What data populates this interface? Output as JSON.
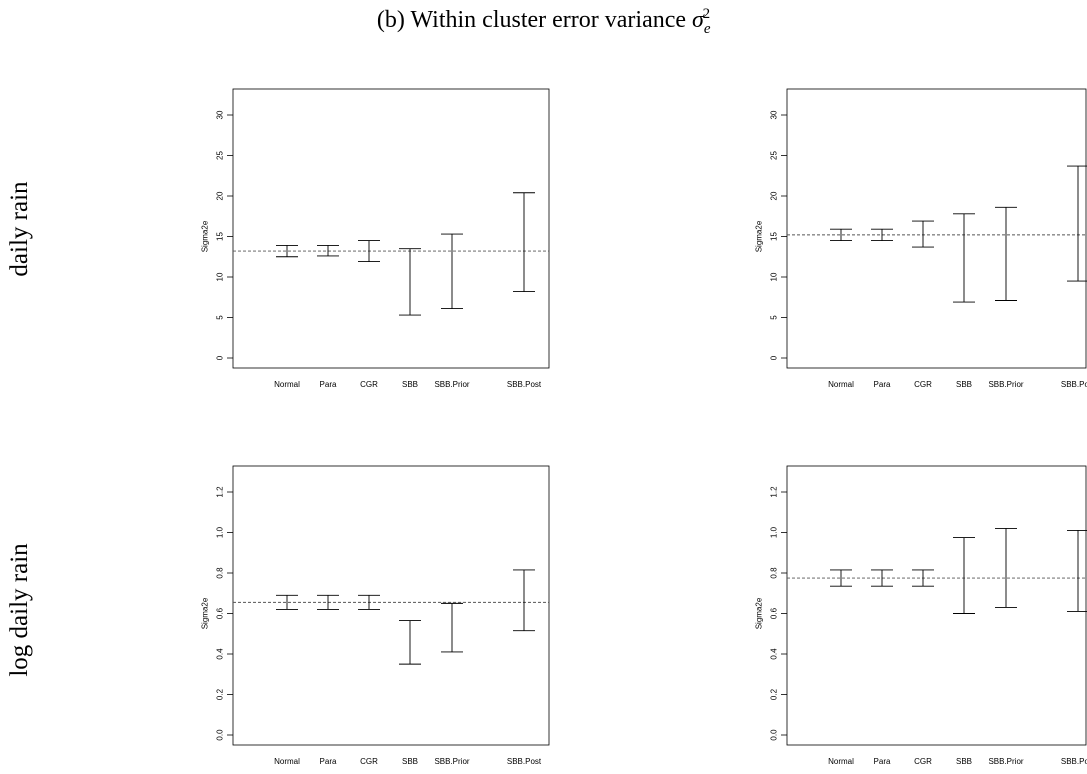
{
  "figure": {
    "title_prefix": "(b) Within cluster error variance ",
    "title_symbol": "σ",
    "title_sub": "e",
    "title_sup": "2",
    "row_labels": [
      "daily rain",
      "log daily rain"
    ]
  },
  "chart_data": [
    {
      "type": "errorbar",
      "ylabel": "Sigma2e",
      "categories": [
        "Normal",
        "Para",
        "CGR",
        "SBB",
        "SBB.Prior",
        "SBB.Post"
      ],
      "x": [
        1,
        2,
        3,
        4,
        5,
        6.5
      ],
      "lower": [
        12.5,
        12.6,
        11.9,
        5.3,
        6.1,
        8.2
      ],
      "upper": [
        13.9,
        13.9,
        14.5,
        13.5,
        15.3,
        20.4
      ],
      "reference_line": 13.2,
      "ylim": [
        0,
        30
      ],
      "yticks": [
        0,
        5,
        10,
        15,
        20,
        25,
        30
      ],
      "grid": false
    },
    {
      "type": "errorbar",
      "ylabel": "Sigma2e",
      "categories": [
        "Normal",
        "Para",
        "CGR",
        "SBB",
        "SBB.Prior",
        "SBB.Post"
      ],
      "x": [
        1,
        2,
        3,
        4,
        5,
        6.5
      ],
      "lower": [
        14.5,
        14.5,
        13.7,
        6.9,
        7.1,
        9.5
      ],
      "upper": [
        15.9,
        15.9,
        16.9,
        17.8,
        18.6,
        23.7
      ],
      "reference_line": 15.2,
      "ylim": [
        0,
        30
      ],
      "yticks": [
        0,
        5,
        10,
        15,
        20,
        25,
        30
      ],
      "grid": false
    },
    {
      "type": "errorbar",
      "ylabel": "Sigma2e",
      "categories": [
        "Normal",
        "Para",
        "CGR",
        "SBB",
        "SBB.Prior",
        "SBB.Post"
      ],
      "x": [
        1,
        2,
        3,
        4,
        5,
        6.5
      ],
      "lower": [
        0.62,
        0.62,
        0.62,
        0.35,
        0.41,
        0.515
      ],
      "upper": [
        0.69,
        0.69,
        0.69,
        0.565,
        0.65,
        0.815
      ],
      "reference_line": 0.655,
      "ylim": [
        0,
        1.2
      ],
      "yticks": [
        0.0,
        0.2,
        0.4,
        0.6,
        0.8,
        1.0,
        1.2
      ],
      "grid": false
    },
    {
      "type": "errorbar",
      "ylabel": "Sigma2e",
      "categories": [
        "Normal",
        "Para",
        "CGR",
        "SBB",
        "SBB.Prior",
        "SBB.Post"
      ],
      "x": [
        1,
        2,
        3,
        4,
        5,
        6.5
      ],
      "lower": [
        0.735,
        0.735,
        0.735,
        0.6,
        0.63,
        0.61
      ],
      "upper": [
        0.815,
        0.815,
        0.815,
        0.975,
        1.02,
        1.01
      ],
      "reference_line": 0.775,
      "ylim": [
        0,
        1.2
      ],
      "yticks": [
        0.0,
        0.2,
        0.4,
        0.6,
        0.8,
        1.0,
        1.2
      ],
      "grid": false
    }
  ]
}
